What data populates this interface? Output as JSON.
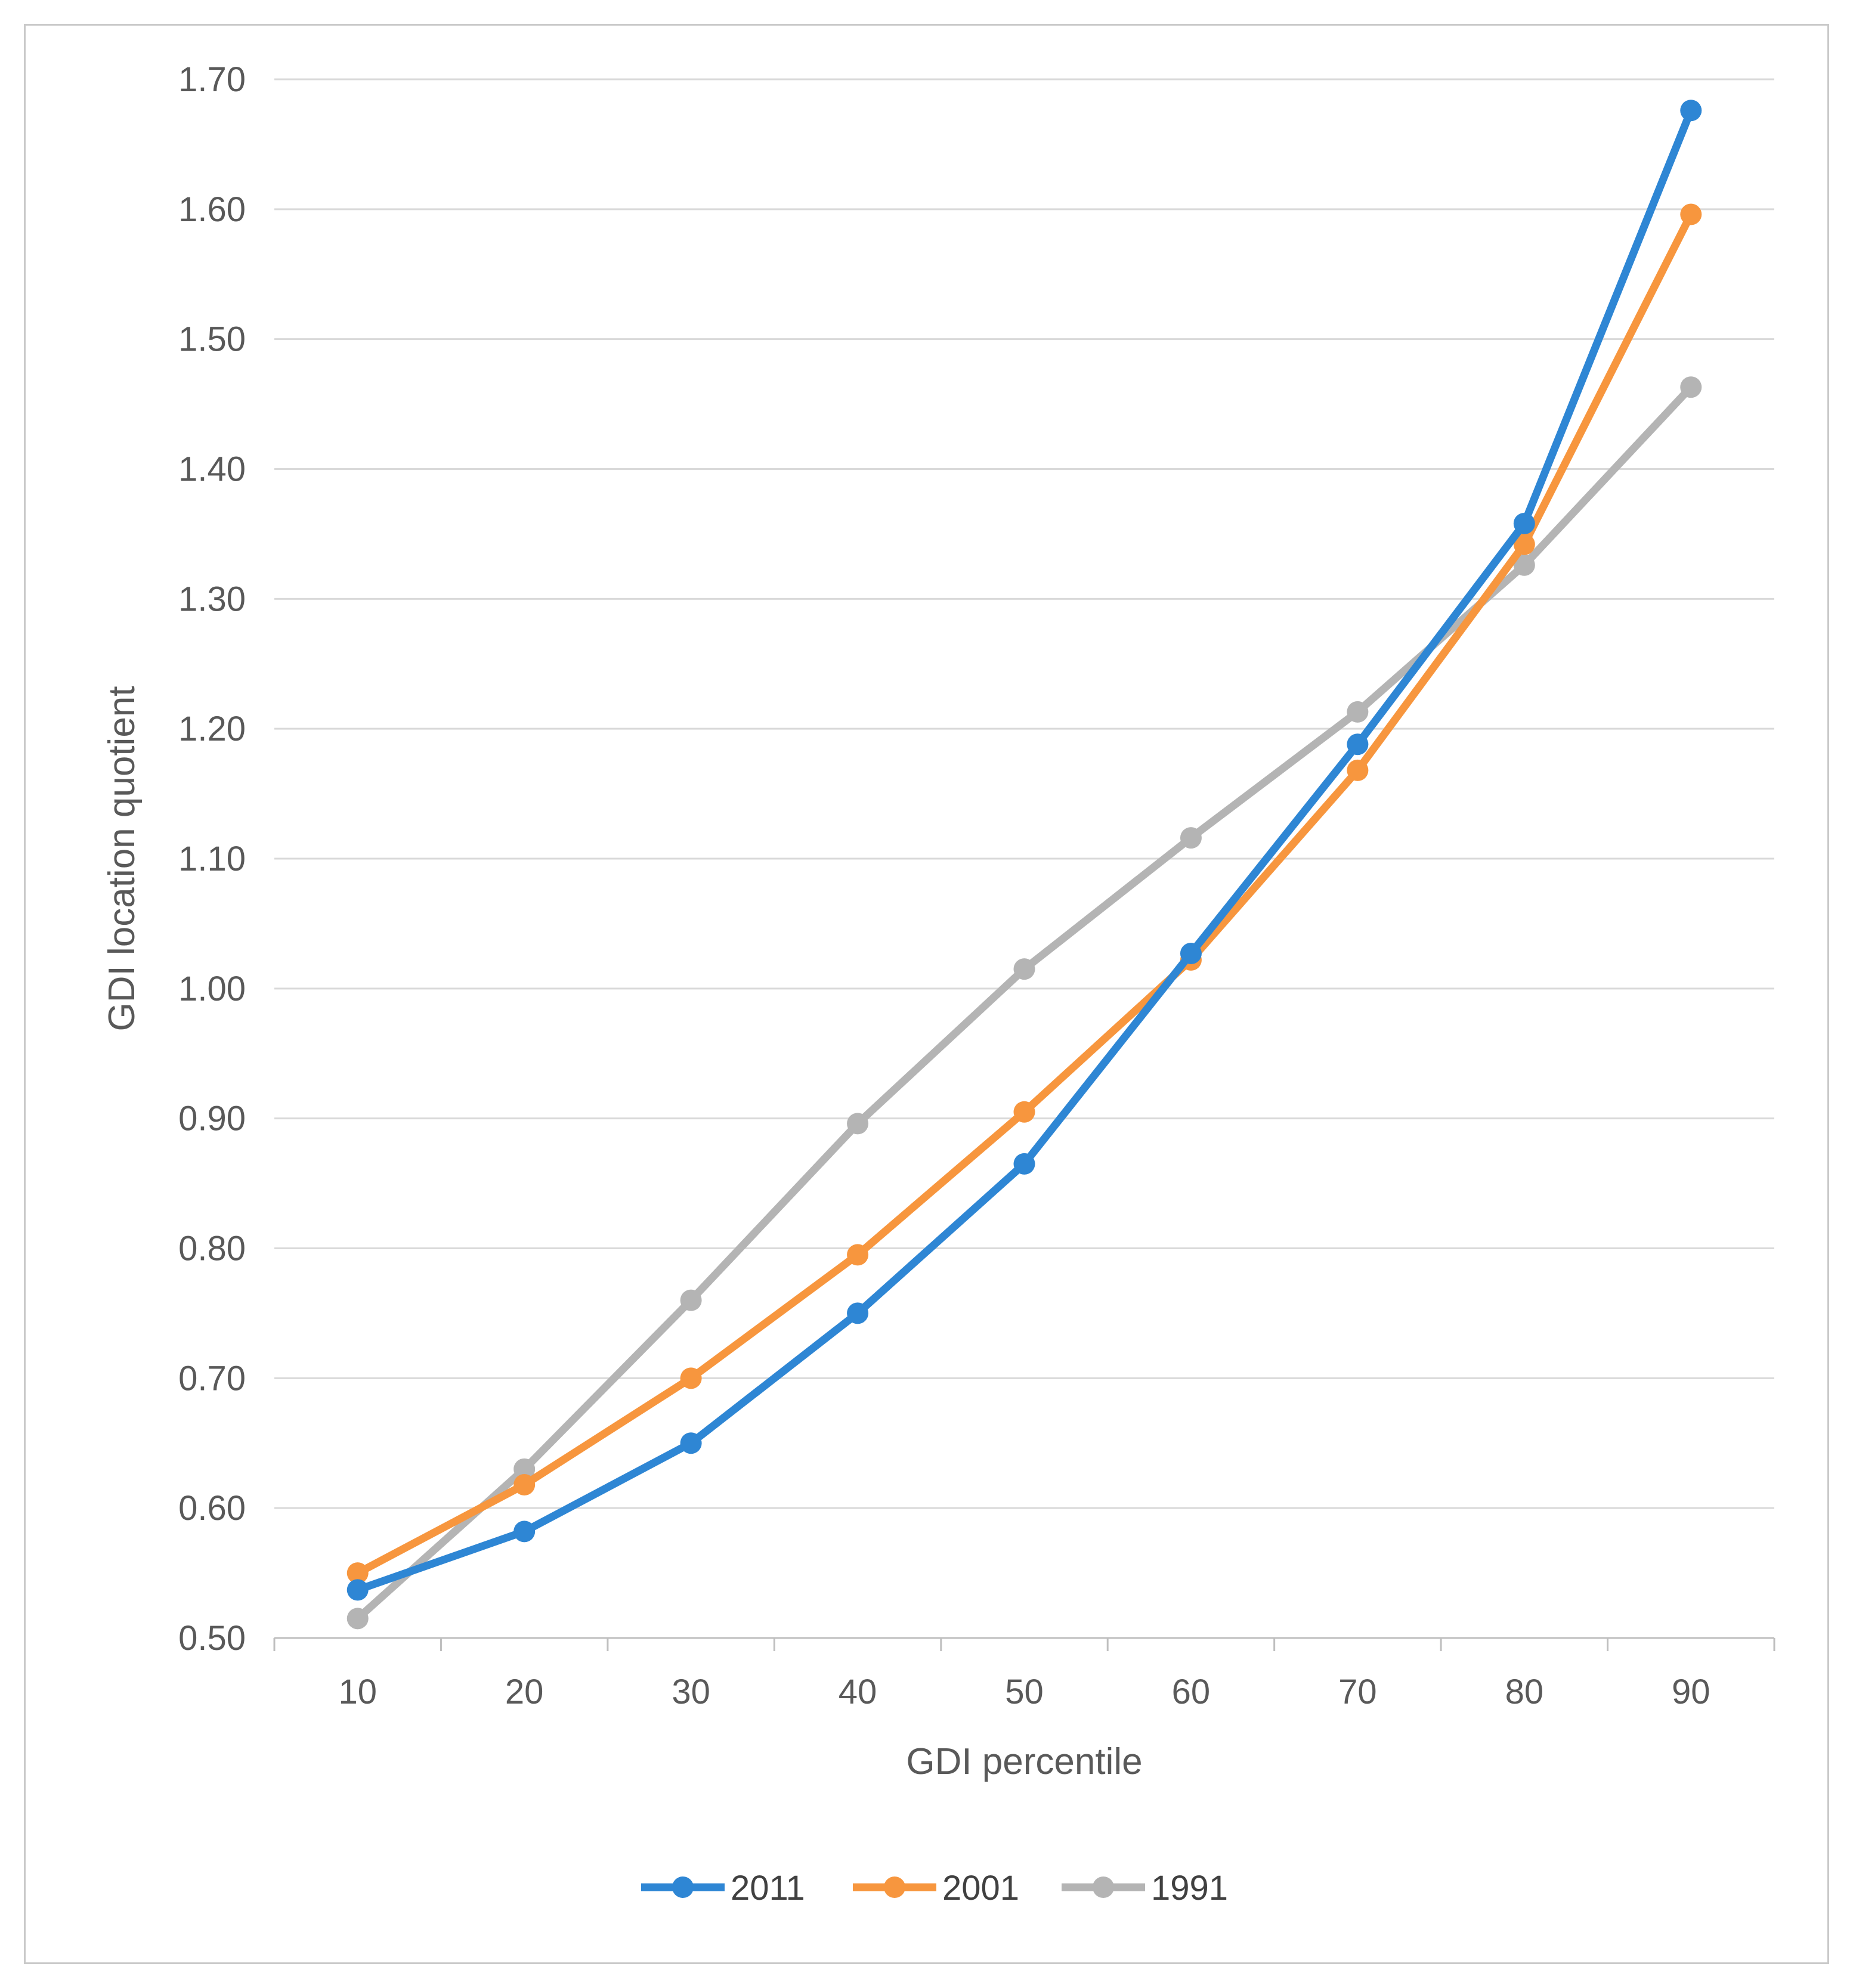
{
  "chart_data": {
    "type": "line",
    "title": "",
    "xlabel": "GDI percentile",
    "ylabel": "GDI location quotient",
    "categories": [
      "10",
      "20",
      "30",
      "40",
      "50",
      "60",
      "70",
      "80",
      "90"
    ],
    "y_ticks": [
      "0.50",
      "0.60",
      "0.70",
      "0.80",
      "0.90",
      "1.00",
      "1.10",
      "1.20",
      "1.30",
      "1.40",
      "1.50",
      "1.60",
      "1.70"
    ],
    "ylim": [
      0.5,
      1.7
    ],
    "grid": true,
    "legend_position": "bottom",
    "series": [
      {
        "name": "2011",
        "color": "#2e86d4",
        "values": [
          0.537,
          0.582,
          0.65,
          0.75,
          0.865,
          1.027,
          1.188,
          1.358,
          1.676
        ]
      },
      {
        "name": "2001",
        "color": "#f7963e",
        "values": [
          0.55,
          0.618,
          0.7,
          0.795,
          0.905,
          1.022,
          1.168,
          1.342,
          1.596
        ]
      },
      {
        "name": "1991",
        "color": "#b4b4b4",
        "values": [
          0.515,
          0.63,
          0.76,
          0.896,
          1.015,
          1.116,
          1.213,
          1.326,
          1.463
        ]
      }
    ]
  }
}
